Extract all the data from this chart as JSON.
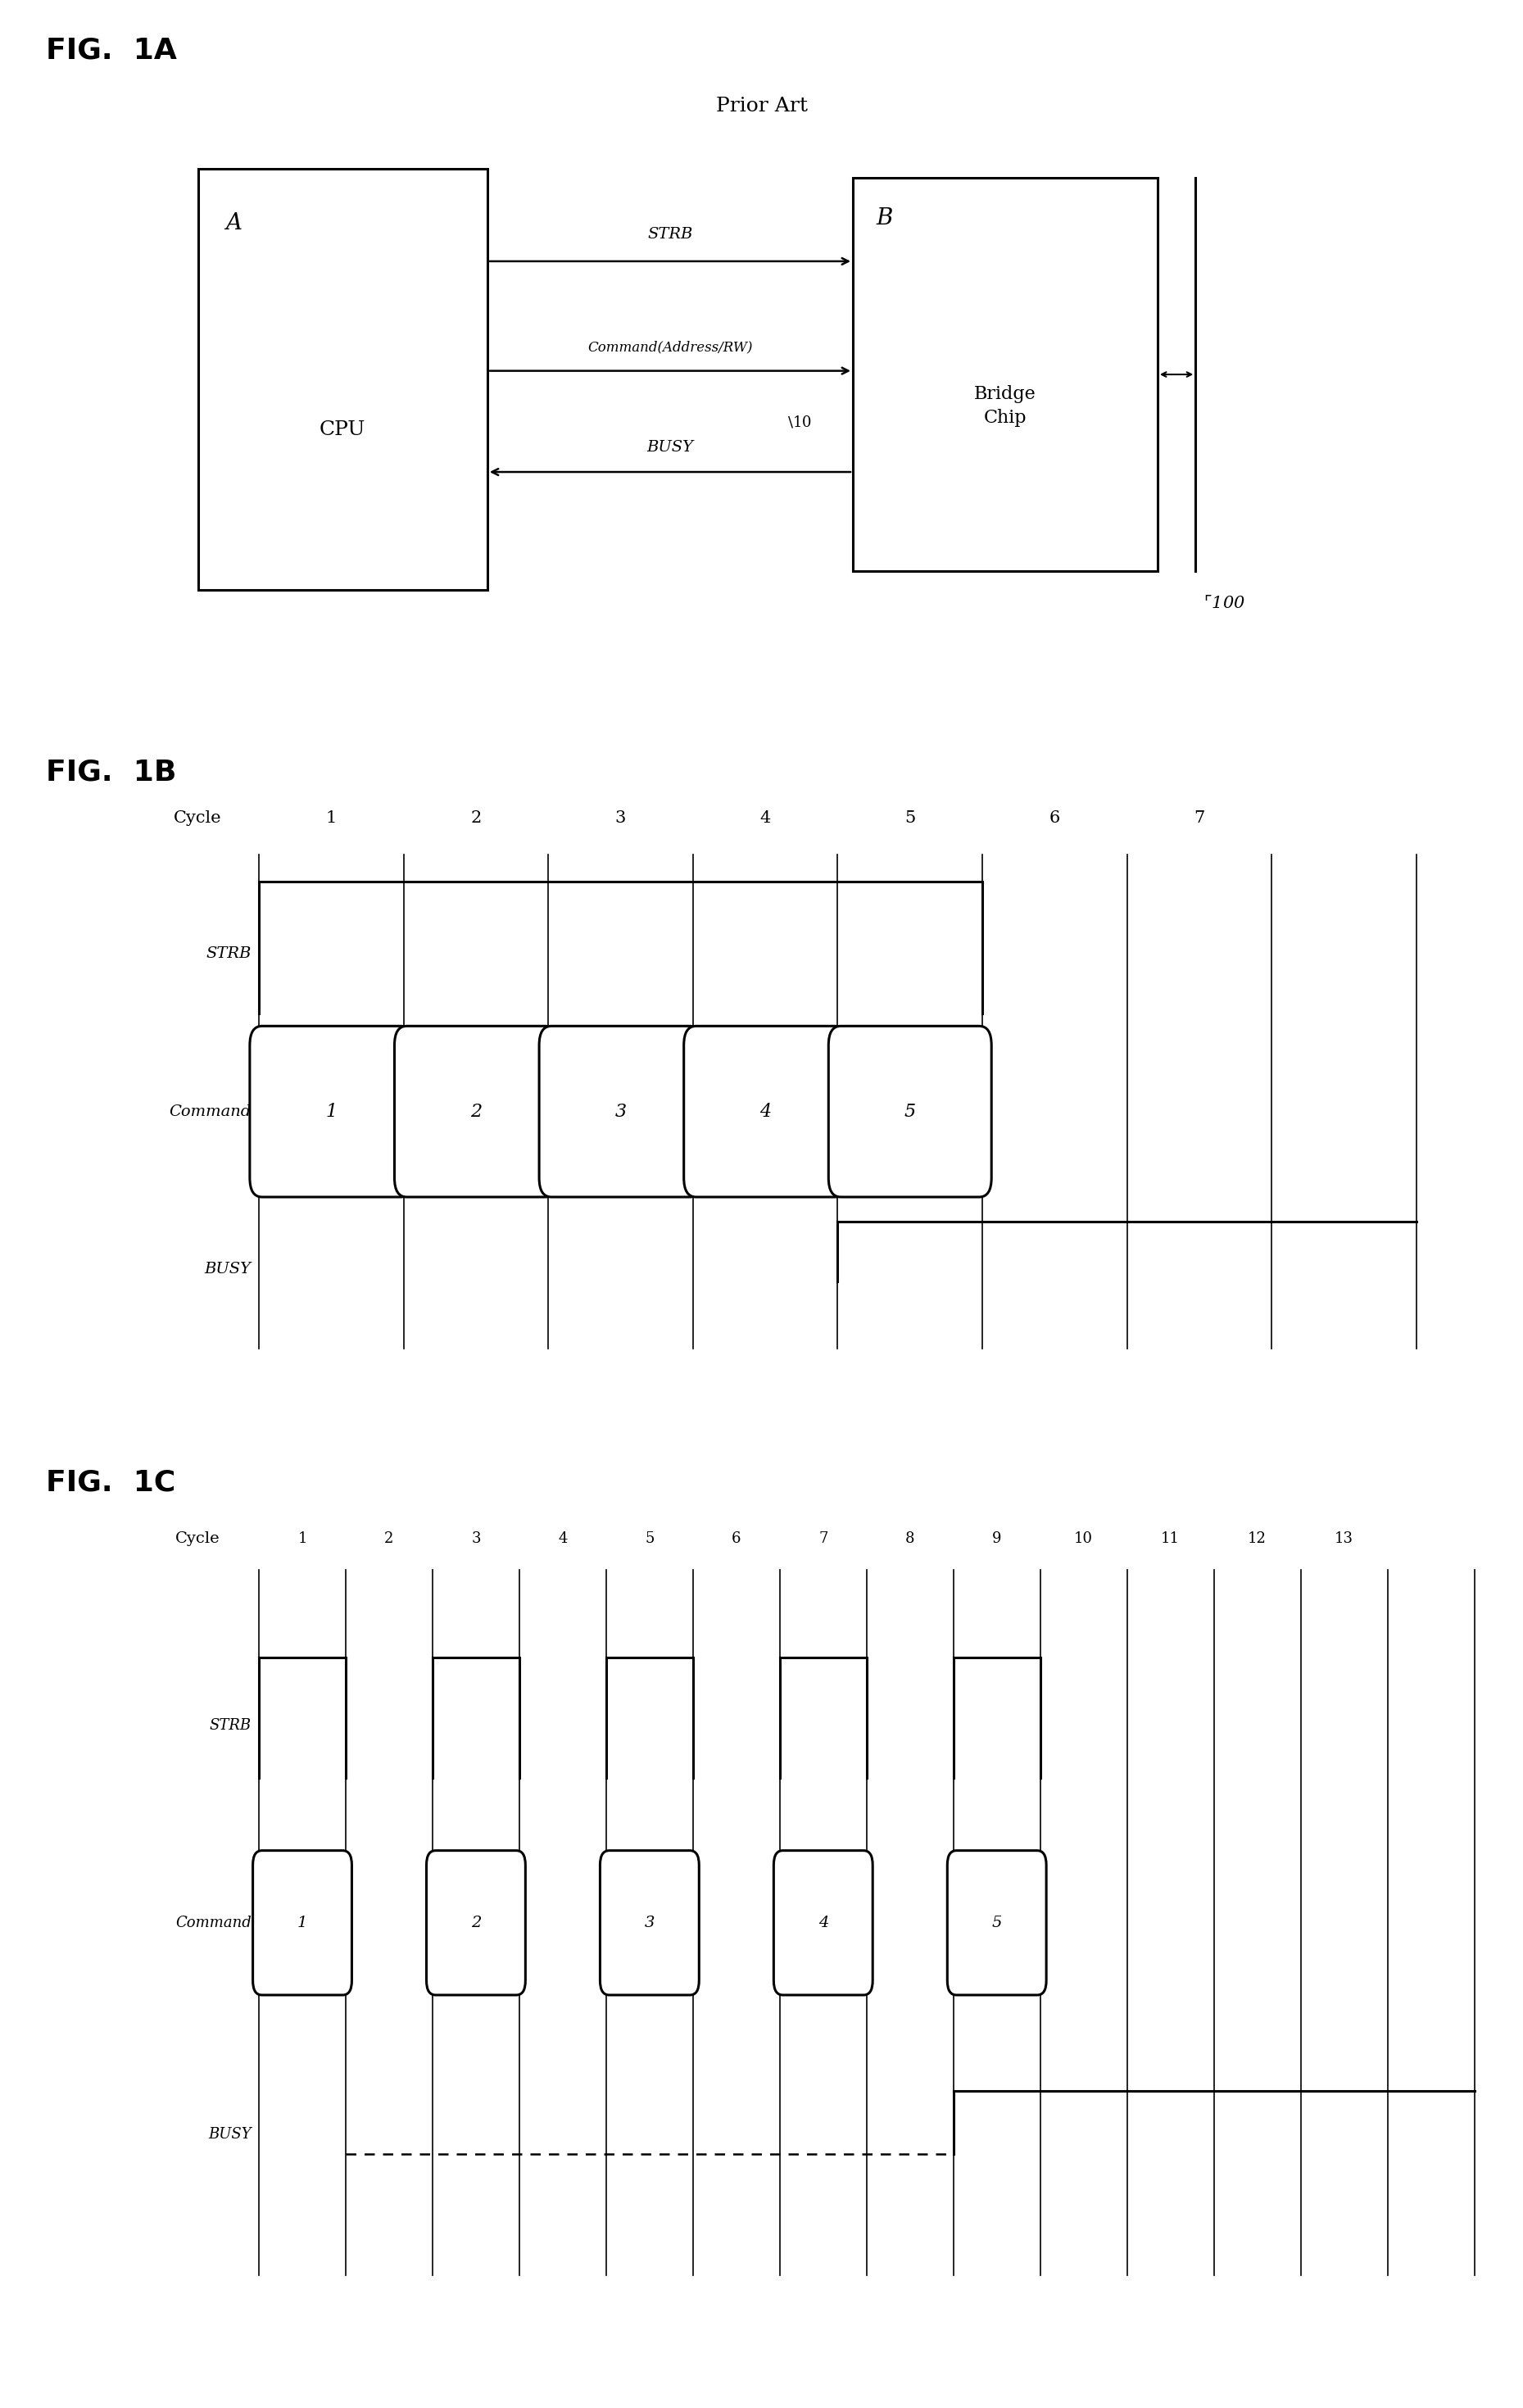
{
  "fig_title_1a": "FIG.  1A",
  "fig_title_1b": "FIG.  1B",
  "fig_title_1c": "FIG.  1C",
  "prior_art": "Prior Art",
  "strb_label": "STRB",
  "command_label": "Command(Address/RW)",
  "busy_label": "BUSY",
  "bus_label": "10",
  "ext_bus_label": "100",
  "bg_color": "#ffffff",
  "fig1b_cycles": [
    "Cycle",
    "1",
    "2",
    "3",
    "4",
    "5",
    "6",
    "7"
  ],
  "fig1b_commands": [
    "1",
    "2",
    "3",
    "4",
    "5"
  ],
  "fig1c_cycles": [
    "Cycle",
    "1",
    "2",
    "3",
    "4",
    "5",
    "6",
    "7",
    "8",
    "9",
    "10",
    "11",
    "12",
    "13"
  ],
  "fig1c_commands": [
    "1",
    "2",
    "3",
    "4",
    "5"
  ],
  "fig1c_cmd_positions": [
    1,
    3,
    5,
    7,
    9
  ]
}
